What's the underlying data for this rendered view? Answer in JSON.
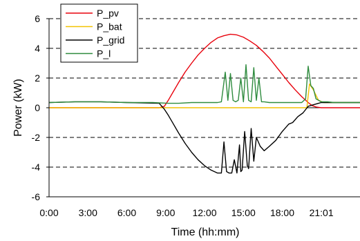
{
  "chart_data": {
    "type": "line",
    "xlabel": "Time (hh:mm)",
    "ylabel": "Power (kW)",
    "xlim": [
      0,
      24
    ],
    "ylim": [
      -6,
      6
    ],
    "x_tick_values": [
      0,
      3,
      6,
      9,
      12,
      15,
      18,
      21.02
    ],
    "x_tick_labels": [
      "0:00",
      "3:00",
      "6:00",
      "9:00",
      "12:00",
      "15:00",
      "18:00",
      "21:01"
    ],
    "y_tick_values": [
      -6,
      -4,
      -2,
      0,
      2,
      4,
      6
    ],
    "y_tick_labels": [
      "-6",
      "-4",
      "-2",
      "0",
      "2",
      "4",
      "6"
    ],
    "grid": "horizontal dashed",
    "legend_position": "top-left",
    "series": [
      {
        "name": "P_pv",
        "color": "#e8000b",
        "x": [
          0,
          8.5,
          8.9,
          9.2,
          9.6,
          10,
          10.5,
          11,
          11.5,
          12,
          12.5,
          13,
          13.5,
          14,
          14.5,
          15,
          15.5,
          16,
          16.5,
          17,
          17.5,
          18,
          18.5,
          19,
          19.5,
          20,
          20.3,
          20.6,
          21,
          24
        ],
        "y": [
          0,
          0,
          0.1,
          0.5,
          1.1,
          1.7,
          2.4,
          3.0,
          3.55,
          4.0,
          4.4,
          4.7,
          4.85,
          4.95,
          4.9,
          4.75,
          4.5,
          4.2,
          3.8,
          3.35,
          2.8,
          2.25,
          1.7,
          1.2,
          0.75,
          0.35,
          0.15,
          0.05,
          0,
          0
        ]
      },
      {
        "name": "P_bat",
        "color": "#f2c200",
        "x": [
          0,
          19.9,
          20.1,
          20.4,
          20.8,
          21.2,
          24
        ],
        "y": [
          0,
          0,
          1.6,
          1.2,
          0.5,
          0.35,
          0.35
        ]
      },
      {
        "name": "P_grid",
        "color": "#000000",
        "x": [
          0,
          2,
          4,
          6,
          8.5,
          8.9,
          9.2,
          9.6,
          10,
          10.5,
          11,
          11.5,
          12,
          12.5,
          13,
          13.3,
          13.5,
          13.7,
          13.9,
          14.1,
          14.3,
          14.5,
          14.7,
          14.8,
          14.9,
          15.1,
          15.3,
          15.4,
          15.6,
          15.8,
          16.0,
          16.3,
          16.6,
          17,
          17.5,
          18,
          18.5,
          18.8,
          19.2,
          19.6,
          20,
          20.4,
          20.8,
          21,
          24
        ],
        "y": [
          0.35,
          0.4,
          0.4,
          0.35,
          0.3,
          -0.1,
          -0.5,
          -1.1,
          -1.7,
          -2.4,
          -3.0,
          -3.5,
          -3.9,
          -4.2,
          -4.4,
          -4.4,
          -2.3,
          -4.3,
          -4.4,
          -4.4,
          -3.5,
          -4.4,
          -2.5,
          -4.3,
          -4.2,
          -1.6,
          -3.9,
          -4.1,
          -1.4,
          -3.6,
          -2.0,
          -2.6,
          -2.9,
          -2.6,
          -2.2,
          -1.6,
          -1.1,
          -1.0,
          -0.6,
          -0.35,
          0.1,
          0.2,
          0.3,
          0.35,
          0.35
        ]
      },
      {
        "name": "P_l",
        "color": "#2e8b3e",
        "x": [
          0,
          2,
          4,
          6,
          8,
          9.2,
          10,
          11,
          12,
          13,
          13.3,
          13.6,
          13.8,
          14.0,
          14.2,
          14.4,
          14.6,
          14.8,
          15.0,
          15.2,
          15.4,
          15.6,
          15.8,
          16.0,
          16.2,
          16.4,
          16.6,
          17,
          18,
          19,
          19.5,
          19.8,
          20.0,
          20.2,
          20.4,
          20.6,
          21,
          21.5,
          22,
          24
        ],
        "y": [
          0.35,
          0.4,
          0.4,
          0.35,
          0.35,
          0.3,
          0.3,
          0.35,
          0.35,
          0.35,
          0.4,
          2.4,
          0.5,
          2.3,
          0.5,
          0.4,
          0.5,
          2.0,
          0.4,
          2.9,
          0.5,
          0.4,
          2.7,
          0.5,
          2.0,
          0.4,
          0.4,
          0.35,
          0.35,
          0.35,
          0.35,
          0.6,
          2.8,
          1.5,
          1.3,
          0.6,
          0.4,
          0.4,
          0.35,
          0.35
        ]
      }
    ]
  }
}
